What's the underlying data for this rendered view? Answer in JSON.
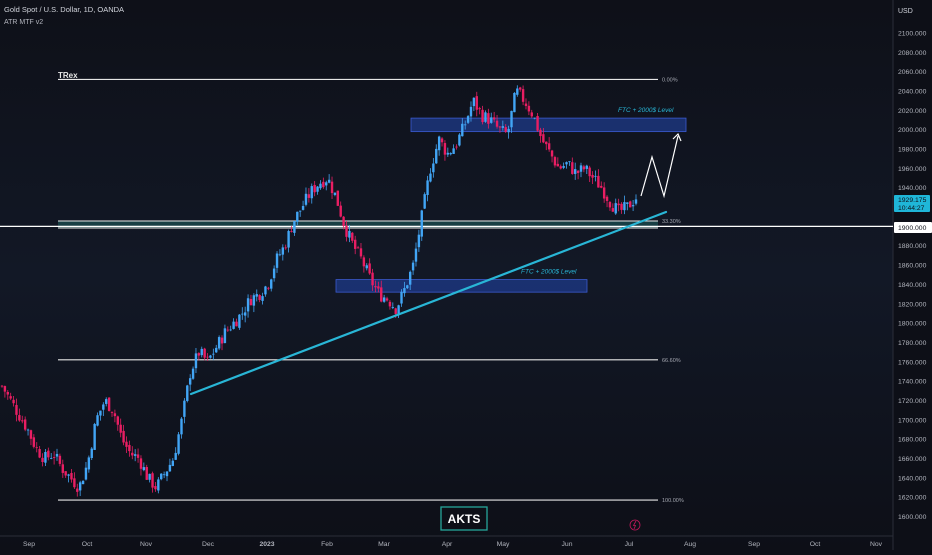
{
  "header": {
    "symbol_line": "Gold Spot / U.S. Dollar, 1D, OANDA",
    "indicator": "ATR MTF v2"
  },
  "price_axis": {
    "currency": "USD",
    "ticks": [
      "1600.000",
      "1620.000",
      "1640.000",
      "1660.000",
      "1680.000",
      "1700.000",
      "1720.000",
      "1740.000",
      "1760.000",
      "1780.000",
      "1800.000",
      "1820.000",
      "1840.000",
      "1860.000",
      "1880.000",
      "1900.000",
      "1920.000",
      "1940.000",
      "1960.000",
      "1980.000",
      "2000.000",
      "2020.000",
      "2040.000",
      "2060.000",
      "2080.000",
      "2100.000"
    ],
    "last_price": "1929.175",
    "countdown": "10:44:27",
    "marked_level": "1900.000"
  },
  "time_axis": {
    "labels": [
      "Sep",
      "Oct",
      "Nov",
      "Dec",
      "2023",
      "Feb",
      "Mar",
      "Apr",
      "May",
      "Jun",
      "Jul",
      "Aug",
      "Sep",
      "Oct",
      "Nov"
    ]
  },
  "annotations": {
    "trex_label": "TRex",
    "fib_0": "0.00%",
    "fib_33": "33.30%",
    "fib_66": "66.60%",
    "fib_100": "100.00%",
    "zone_upper_label": "FTC + 2000$ Level",
    "zone_lower_label": "FTC + 2000$ Level",
    "watermark": "AKTS"
  },
  "colors": {
    "background": "#0d0f17",
    "up_candle": "#42a5f5",
    "down_candle": "#e91e63",
    "trendline": "#29b6d6",
    "zone_fill": "#1e3a8a",
    "zone_label": "#29b6d6",
    "support_band": "#26a69a",
    "horizontal_lines": "#ffffff"
  },
  "chart_data": {
    "type": "candlestick",
    "title": "Gold Spot / U.S. Dollar, 1D, OANDA",
    "ylim": [
      1590,
      2120
    ],
    "weekly_closes": [
      1735,
      1720,
      1705,
      1690,
      1670,
      1660,
      1665,
      1650,
      1640,
      1630,
      1655,
      1700,
      1720,
      1710,
      1680,
      1665,
      1660,
      1640,
      1630,
      1645,
      1660,
      1700,
      1750,
      1770,
      1760,
      1775,
      1790,
      1800,
      1810,
      1825,
      1830,
      1840,
      1865,
      1880,
      1905,
      1920,
      1935,
      1945,
      1950,
      1930,
      1900,
      1880,
      1865,
      1845,
      1830,
      1825,
      1815,
      1835,
      1860,
      1910,
      1960,
      1990,
      1975,
      1985,
      2005,
      2030,
      2015,
      2010,
      2000,
      1995,
      2040,
      2030,
      2015,
      1990,
      1975,
      1960,
      1965,
      1955,
      1960,
      1950,
      1940,
      1925,
      1915,
      1920,
      1930
    ],
    "levels": [
      {
        "label": "0.00%",
        "price": 2052
      },
      {
        "label": "33.30%",
        "price": 1907
      },
      {
        "label": "66.60%",
        "price": 1762
      },
      {
        "label": "100.00%",
        "price": 1617
      }
    ],
    "zones": [
      {
        "label": "FTC + 2000$ Level",
        "from": 1998,
        "to": 2012
      },
      {
        "label": "FTC + 2000$ Level",
        "from": 1832,
        "to": 1845
      }
    ],
    "horizontal_line": 1900
  }
}
